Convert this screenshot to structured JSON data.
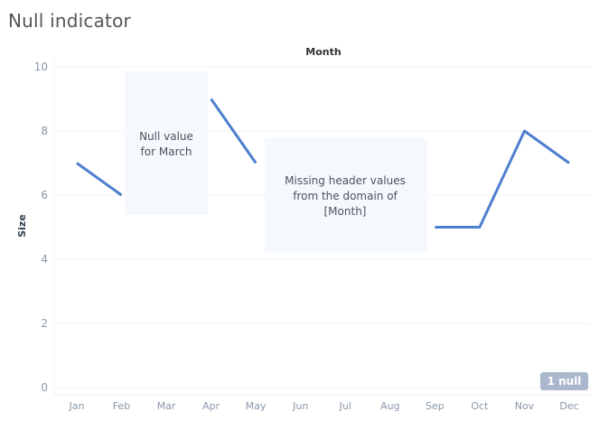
{
  "title": "Null indicator",
  "chart_data": {
    "type": "line",
    "title": "",
    "column_header": "Month",
    "xlabel": "",
    "ylabel": "Size",
    "categories": [
      "Jan",
      "Feb",
      "Mar",
      "Apr",
      "May",
      "Jun",
      "Jul",
      "Aug",
      "Sep",
      "Oct",
      "Nov",
      "Dec"
    ],
    "values": [
      7,
      6,
      null,
      9,
      7,
      null,
      null,
      null,
      5,
      5,
      8,
      7
    ],
    "ylim": [
      0,
      10
    ],
    "yticks": [
      "0",
      "2",
      "4",
      "6",
      "8",
      "10"
    ],
    "grid": true,
    "line_color": "#4e7fcf",
    "annotations": [
      {
        "id": "null-march",
        "lines": [
          "Null value",
          "for March"
        ]
      },
      {
        "id": "missing-header",
        "lines": [
          "Missing header values",
          "from the domain of",
          "[Month]"
        ]
      }
    ],
    "null_indicator_label": "1 null"
  },
  "colors": {
    "title": "#555555",
    "axis_text": "#8a97a8",
    "annotation_bg": "#f5f8fd",
    "annotation_text": "#4a5360",
    "gridline": "#eef0f3",
    "null_badge_bg": "#aab7cc",
    "null_badge_text": "#ffffff",
    "ylabel": "#333f52"
  }
}
